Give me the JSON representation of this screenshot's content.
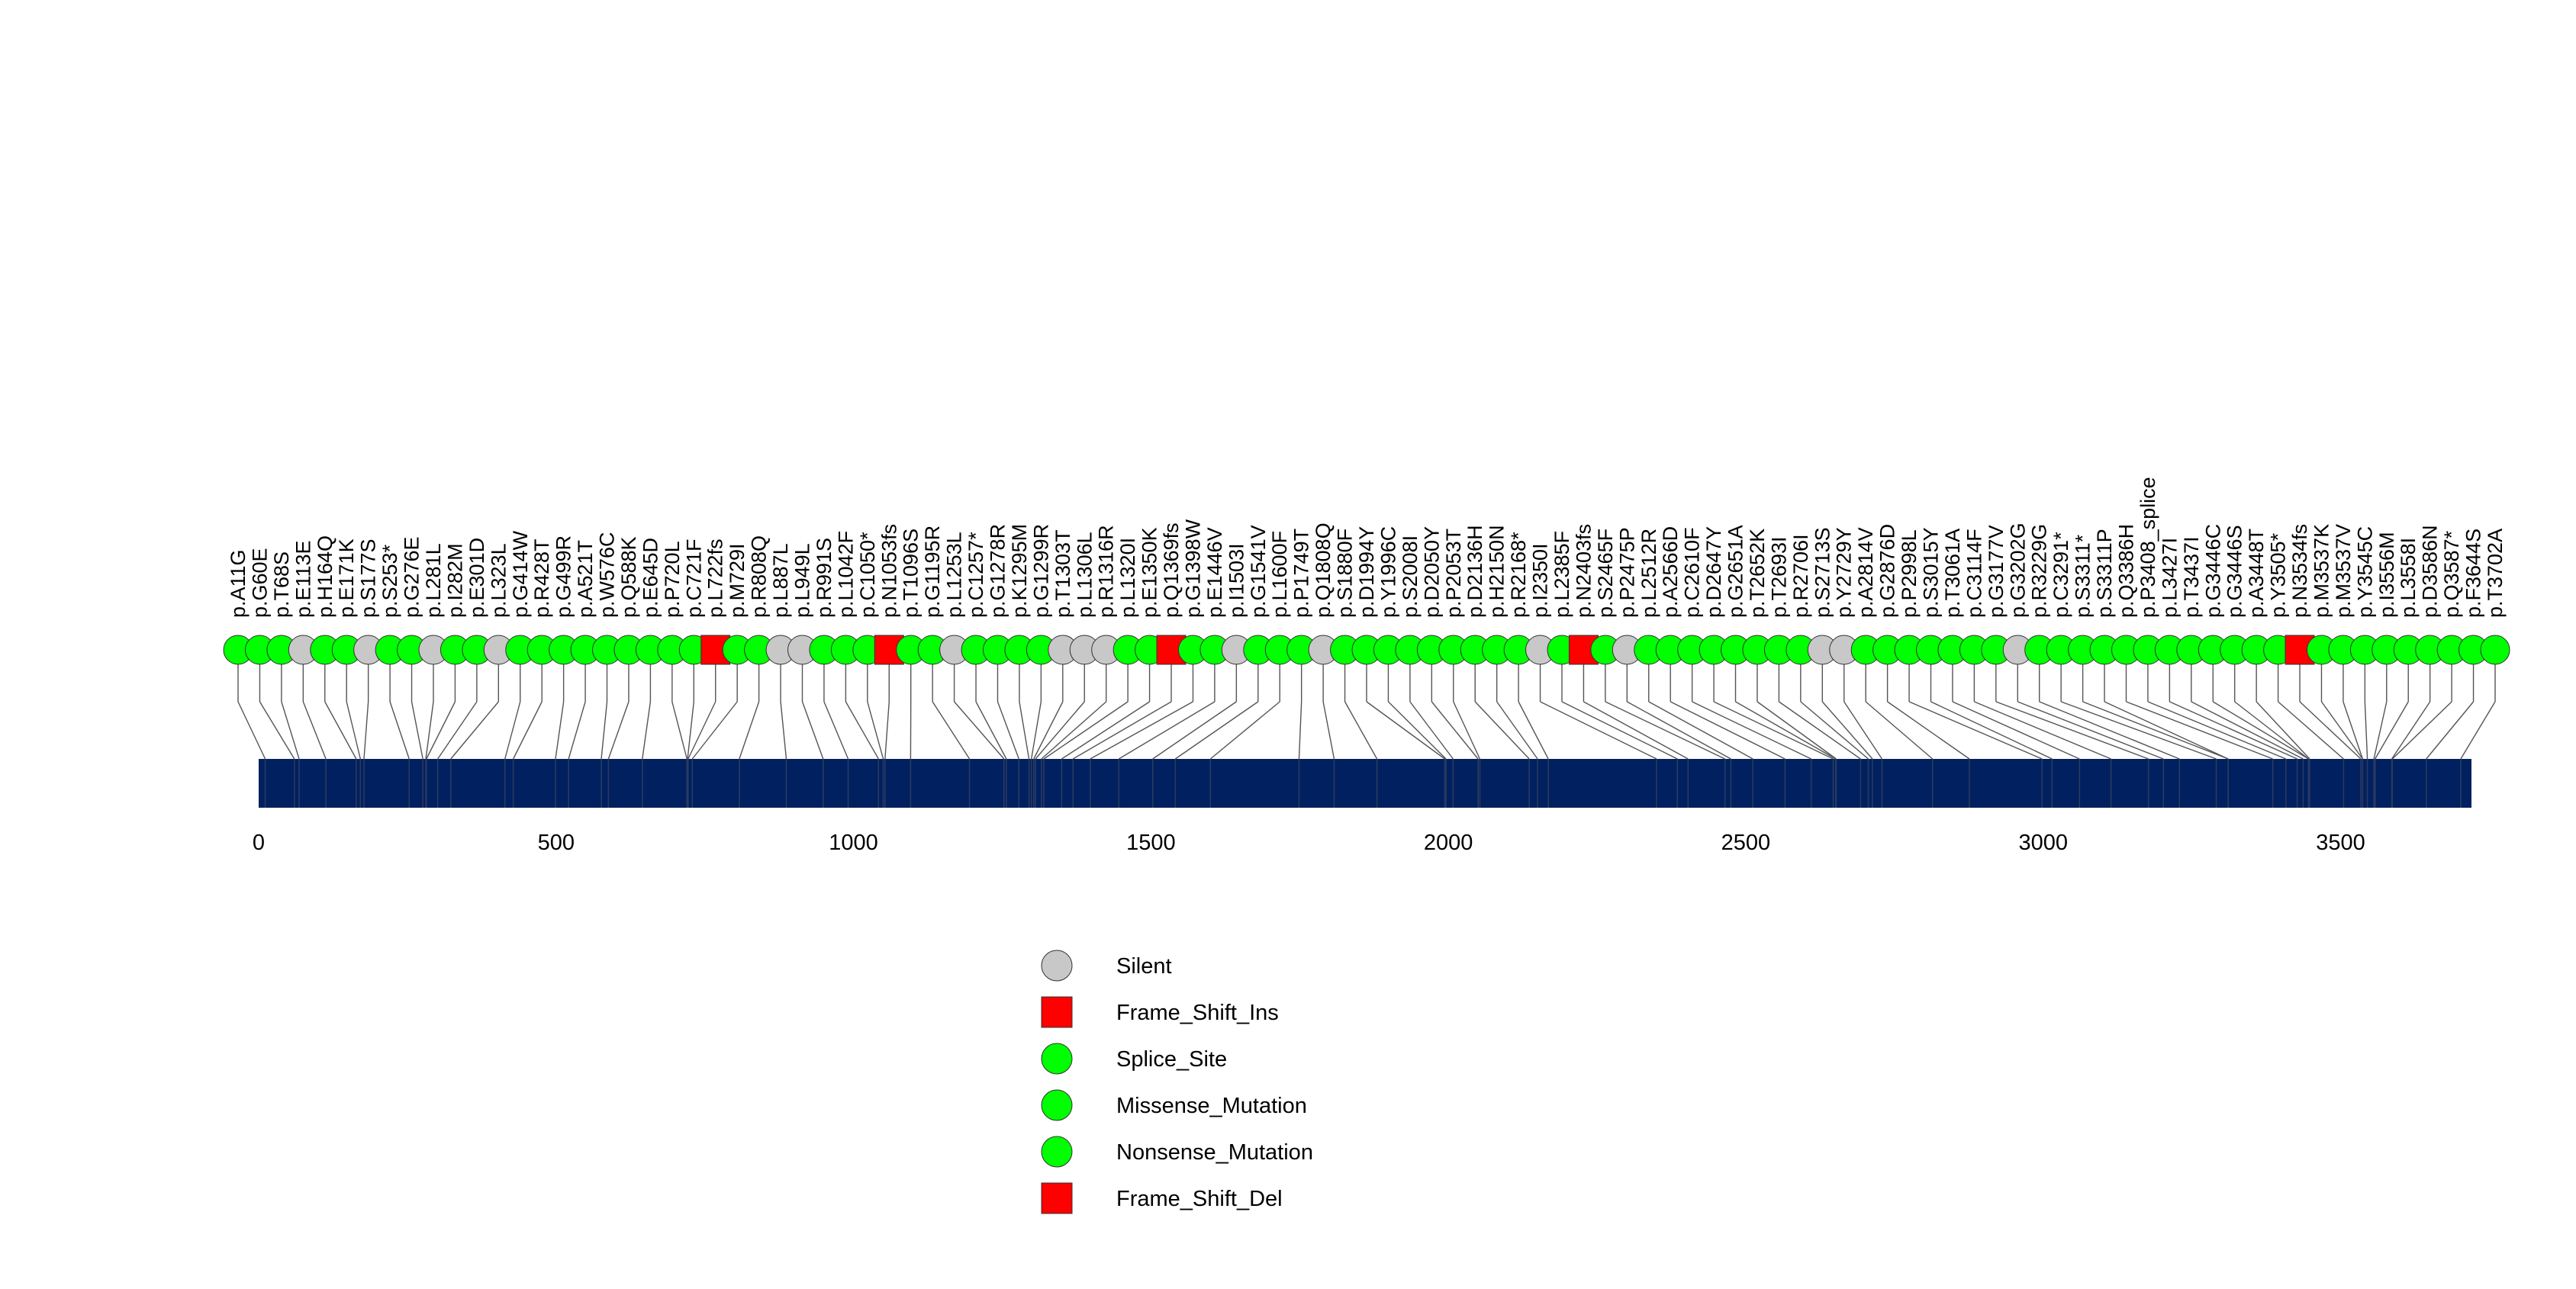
{
  "chart_data": {
    "type": "lollipop",
    "protein_length": 3720,
    "xlim": [
      0,
      3720
    ],
    "x_ticks": [
      0,
      500,
      1000,
      1500,
      2000,
      2500,
      3000,
      3500
    ],
    "bar_color": "#00205f",
    "mutation_classes": {
      "Silent": "#c8c8c8",
      "Frame_Shift_Ins": "#ff0000",
      "Splice_Site": "#00ff00",
      "Missense_Mutation": "#00ff00",
      "Nonsense_Mutation": "#00ff00",
      "Frame_Shift_Del": "#ff0000"
    },
    "legend": [
      {
        "label": "Silent",
        "shape": "circle",
        "color": "#c8c8c8"
      },
      {
        "label": "Frame_Shift_Ins",
        "shape": "square",
        "color": "#ff0000"
      },
      {
        "label": "Splice_Site",
        "shape": "circle",
        "color": "#00ff00"
      },
      {
        "label": "Missense_Mutation",
        "shape": "circle",
        "color": "#00ff00"
      },
      {
        "label": "Nonsense_Mutation",
        "shape": "circle",
        "color": "#00ff00"
      },
      {
        "label": "Frame_Shift_Del",
        "shape": "square",
        "color": "#ff0000"
      }
    ],
    "mutations": [
      {
        "label": "p.A11G",
        "pos": 11,
        "type": "Missense_Mutation"
      },
      {
        "label": "p.G60E",
        "pos": 60,
        "type": "Missense_Mutation"
      },
      {
        "label": "p.T68S",
        "pos": 68,
        "type": "Missense_Mutation"
      },
      {
        "label": "p.E113E",
        "pos": 113,
        "type": "Silent"
      },
      {
        "label": "p.H164Q",
        "pos": 164,
        "type": "Missense_Mutation"
      },
      {
        "label": "p.E171K",
        "pos": 171,
        "type": "Missense_Mutation"
      },
      {
        "label": "p.S177S",
        "pos": 177,
        "type": "Silent"
      },
      {
        "label": "p.S253*",
        "pos": 253,
        "type": "Nonsense_Mutation"
      },
      {
        "label": "p.G276E",
        "pos": 276,
        "type": "Missense_Mutation"
      },
      {
        "label": "p.L281L",
        "pos": 281,
        "type": "Silent"
      },
      {
        "label": "p.I282M",
        "pos": 282,
        "type": "Missense_Mutation"
      },
      {
        "label": "p.E301D",
        "pos": 301,
        "type": "Missense_Mutation"
      },
      {
        "label": "p.L323L",
        "pos": 323,
        "type": "Silent"
      },
      {
        "label": "p.G414W",
        "pos": 414,
        "type": "Missense_Mutation"
      },
      {
        "label": "p.R428T",
        "pos": 428,
        "type": "Missense_Mutation"
      },
      {
        "label": "p.G499R",
        "pos": 499,
        "type": "Missense_Mutation"
      },
      {
        "label": "p.A521T",
        "pos": 521,
        "type": "Missense_Mutation"
      },
      {
        "label": "p.W576C",
        "pos": 576,
        "type": "Missense_Mutation"
      },
      {
        "label": "p.Q588K",
        "pos": 588,
        "type": "Missense_Mutation"
      },
      {
        "label": "p.E645D",
        "pos": 645,
        "type": "Missense_Mutation"
      },
      {
        "label": "p.P720L",
        "pos": 720,
        "type": "Missense_Mutation"
      },
      {
        "label": "p.C721F",
        "pos": 721,
        "type": "Missense_Mutation"
      },
      {
        "label": "p.L722fs",
        "pos": 722,
        "type": "Frame_Shift_Del"
      },
      {
        "label": "p.M729I",
        "pos": 729,
        "type": "Missense_Mutation"
      },
      {
        "label": "p.R808Q",
        "pos": 808,
        "type": "Missense_Mutation"
      },
      {
        "label": "p.L887L",
        "pos": 887,
        "type": "Silent"
      },
      {
        "label": "p.L949L",
        "pos": 949,
        "type": "Silent"
      },
      {
        "label": "p.R991S",
        "pos": 991,
        "type": "Missense_Mutation"
      },
      {
        "label": "p.L1042F",
        "pos": 1042,
        "type": "Missense_Mutation"
      },
      {
        "label": "p.C1050*",
        "pos": 1050,
        "type": "Nonsense_Mutation"
      },
      {
        "label": "p.N1053fs",
        "pos": 1053,
        "type": "Frame_Shift_Ins"
      },
      {
        "label": "p.T1096S",
        "pos": 1096,
        "type": "Missense_Mutation"
      },
      {
        "label": "p.G1195R",
        "pos": 1195,
        "type": "Missense_Mutation"
      },
      {
        "label": "p.L1253L",
        "pos": 1253,
        "type": "Silent"
      },
      {
        "label": "p.C1257*",
        "pos": 1257,
        "type": "Nonsense_Mutation"
      },
      {
        "label": "p.G1278R",
        "pos": 1278,
        "type": "Missense_Mutation"
      },
      {
        "label": "p.K1295M",
        "pos": 1295,
        "type": "Missense_Mutation"
      },
      {
        "label": "p.G1299R",
        "pos": 1299,
        "type": "Missense_Mutation"
      },
      {
        "label": "p.T1303T",
        "pos": 1303,
        "type": "Silent"
      },
      {
        "label": "p.L1306L",
        "pos": 1306,
        "type": "Silent"
      },
      {
        "label": "p.R1316R",
        "pos": 1316,
        "type": "Silent"
      },
      {
        "label": "p.L1320I",
        "pos": 1320,
        "type": "Missense_Mutation"
      },
      {
        "label": "p.E1350K",
        "pos": 1350,
        "type": "Missense_Mutation"
      },
      {
        "label": "p.Q1369fs",
        "pos": 1369,
        "type": "Frame_Shift_Ins"
      },
      {
        "label": "p.G1398W",
        "pos": 1398,
        "type": "Missense_Mutation"
      },
      {
        "label": "p.E1446V",
        "pos": 1446,
        "type": "Missense_Mutation"
      },
      {
        "label": "p.I1503I",
        "pos": 1503,
        "type": "Silent"
      },
      {
        "label": "p.G1541V",
        "pos": 1541,
        "type": "Missense_Mutation"
      },
      {
        "label": "p.L1600F",
        "pos": 1600,
        "type": "Missense_Mutation"
      },
      {
        "label": "p.P1749T",
        "pos": 1749,
        "type": "Missense_Mutation"
      },
      {
        "label": "p.Q1808Q",
        "pos": 1808,
        "type": "Silent"
      },
      {
        "label": "p.S1880F",
        "pos": 1880,
        "type": "Missense_Mutation"
      },
      {
        "label": "p.D1994Y",
        "pos": 1994,
        "type": "Missense_Mutation"
      },
      {
        "label": "p.Y1996C",
        "pos": 1996,
        "type": "Missense_Mutation"
      },
      {
        "label": "p.S2008I",
        "pos": 2008,
        "type": "Missense_Mutation"
      },
      {
        "label": "p.D2050Y",
        "pos": 2050,
        "type": "Missense_Mutation"
      },
      {
        "label": "p.P2053T",
        "pos": 2053,
        "type": "Missense_Mutation"
      },
      {
        "label": "p.D2136H",
        "pos": 2136,
        "type": "Missense_Mutation"
      },
      {
        "label": "p.H2150N",
        "pos": 2150,
        "type": "Missense_Mutation"
      },
      {
        "label": "p.R2168*",
        "pos": 2168,
        "type": "Nonsense_Mutation"
      },
      {
        "label": "p.I2350I",
        "pos": 2350,
        "type": "Silent"
      },
      {
        "label": "p.L2385F",
        "pos": 2385,
        "type": "Missense_Mutation"
      },
      {
        "label": "p.N2403fs",
        "pos": 2403,
        "type": "Frame_Shift_Del"
      },
      {
        "label": "p.S2465F",
        "pos": 2465,
        "type": "Missense_Mutation"
      },
      {
        "label": "p.P2475P",
        "pos": 2475,
        "type": "Silent"
      },
      {
        "label": "p.L2512R",
        "pos": 2512,
        "type": "Missense_Mutation"
      },
      {
        "label": "p.A2566D",
        "pos": 2566,
        "type": "Missense_Mutation"
      },
      {
        "label": "p.C2610F",
        "pos": 2610,
        "type": "Missense_Mutation"
      },
      {
        "label": "p.D2647Y",
        "pos": 2647,
        "type": "Missense_Mutation"
      },
      {
        "label": "p.G2651A",
        "pos": 2651,
        "type": "Missense_Mutation"
      },
      {
        "label": "p.T2652K",
        "pos": 2652,
        "type": "Missense_Mutation"
      },
      {
        "label": "p.T2693I",
        "pos": 2693,
        "type": "Missense_Mutation"
      },
      {
        "label": "p.R2706I",
        "pos": 2706,
        "type": "Missense_Mutation"
      },
      {
        "label": "p.S2713S",
        "pos": 2713,
        "type": "Silent"
      },
      {
        "label": "p.Y2729Y",
        "pos": 2729,
        "type": "Silent"
      },
      {
        "label": "p.A2814V",
        "pos": 2814,
        "type": "Missense_Mutation"
      },
      {
        "label": "p.G2876D",
        "pos": 2876,
        "type": "Missense_Mutation"
      },
      {
        "label": "p.P2998L",
        "pos": 2998,
        "type": "Missense_Mutation"
      },
      {
        "label": "p.S3015Y",
        "pos": 3015,
        "type": "Missense_Mutation"
      },
      {
        "label": "p.T3061A",
        "pos": 3061,
        "type": "Missense_Mutation"
      },
      {
        "label": "p.C3114F",
        "pos": 3114,
        "type": "Missense_Mutation"
      },
      {
        "label": "p.G3177V",
        "pos": 3177,
        "type": "Missense_Mutation"
      },
      {
        "label": "p.G3202G",
        "pos": 3202,
        "type": "Silent"
      },
      {
        "label": "p.R3229G",
        "pos": 3229,
        "type": "Missense_Mutation"
      },
      {
        "label": "p.C3291*",
        "pos": 3291,
        "type": "Nonsense_Mutation"
      },
      {
        "label": "p.S3311*",
        "pos": 3311,
        "type": "Nonsense_Mutation"
      },
      {
        "label": "p.S3311P",
        "pos": 3311,
        "type": "Missense_Mutation"
      },
      {
        "label": "p.Q3386H",
        "pos": 3386,
        "type": "Missense_Mutation"
      },
      {
        "label": "p.P3408_splice",
        "pos": 3408,
        "type": "Splice_Site"
      },
      {
        "label": "p.L3427I",
        "pos": 3427,
        "type": "Missense_Mutation"
      },
      {
        "label": "p.T3437I",
        "pos": 3437,
        "type": "Missense_Mutation"
      },
      {
        "label": "p.G3446C",
        "pos": 3446,
        "type": "Missense_Mutation"
      },
      {
        "label": "p.G3446S",
        "pos": 3446,
        "type": "Missense_Mutation"
      },
      {
        "label": "p.A3448T",
        "pos": 3448,
        "type": "Missense_Mutation"
      },
      {
        "label": "p.Y3505*",
        "pos": 3505,
        "type": "Nonsense_Mutation"
      },
      {
        "label": "p.N3534fs",
        "pos": 3534,
        "type": "Frame_Shift_Del"
      },
      {
        "label": "p.M3537K",
        "pos": 3537,
        "type": "Missense_Mutation"
      },
      {
        "label": "p.M3537V",
        "pos": 3537,
        "type": "Missense_Mutation"
      },
      {
        "label": "p.Y3545C",
        "pos": 3545,
        "type": "Missense_Mutation"
      },
      {
        "label": "p.I3556M",
        "pos": 3556,
        "type": "Missense_Mutation"
      },
      {
        "label": "p.L3558I",
        "pos": 3558,
        "type": "Missense_Mutation"
      },
      {
        "label": "p.D3586N",
        "pos": 3586,
        "type": "Missense_Mutation"
      },
      {
        "label": "p.Q3587*",
        "pos": 3587,
        "type": "Nonsense_Mutation"
      },
      {
        "label": "p.F3644S",
        "pos": 3644,
        "type": "Missense_Mutation"
      },
      {
        "label": "p.T3702A",
        "pos": 3702,
        "type": "Missense_Mutation"
      }
    ]
  }
}
